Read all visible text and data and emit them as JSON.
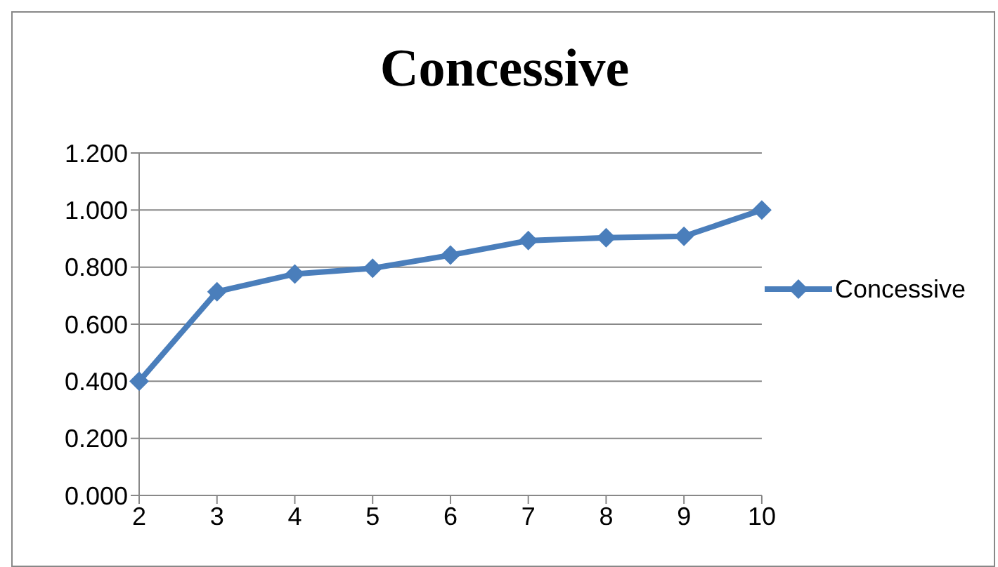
{
  "chart_data": {
    "type": "line",
    "title": "Concessive",
    "categories": [
      "2",
      "3",
      "4",
      "5",
      "6",
      "7",
      "8",
      "9",
      "10"
    ],
    "series": [
      {
        "name": "Concessive",
        "color": "#4a7ebb",
        "values": [
          0.4,
          0.714,
          0.776,
          0.796,
          0.842,
          0.893,
          0.903,
          0.908,
          1.0
        ]
      }
    ],
    "ylim": [
      0,
      1.2
    ],
    "yticks": [
      {
        "value": 0,
        "label": "0.000"
      },
      {
        "value": 0.2,
        "label": "0.200"
      },
      {
        "value": 0.4,
        "label": "0.400"
      },
      {
        "value": 0.6,
        "label": "0.600"
      },
      {
        "value": 0.8,
        "label": "0.800"
      },
      {
        "value": 1.0,
        "label": "1.000"
      },
      {
        "value": 1.2,
        "label": "1.200"
      }
    ],
    "grid": "y",
    "legend": "right",
    "marker": "diamond",
    "line_style": "solid"
  }
}
